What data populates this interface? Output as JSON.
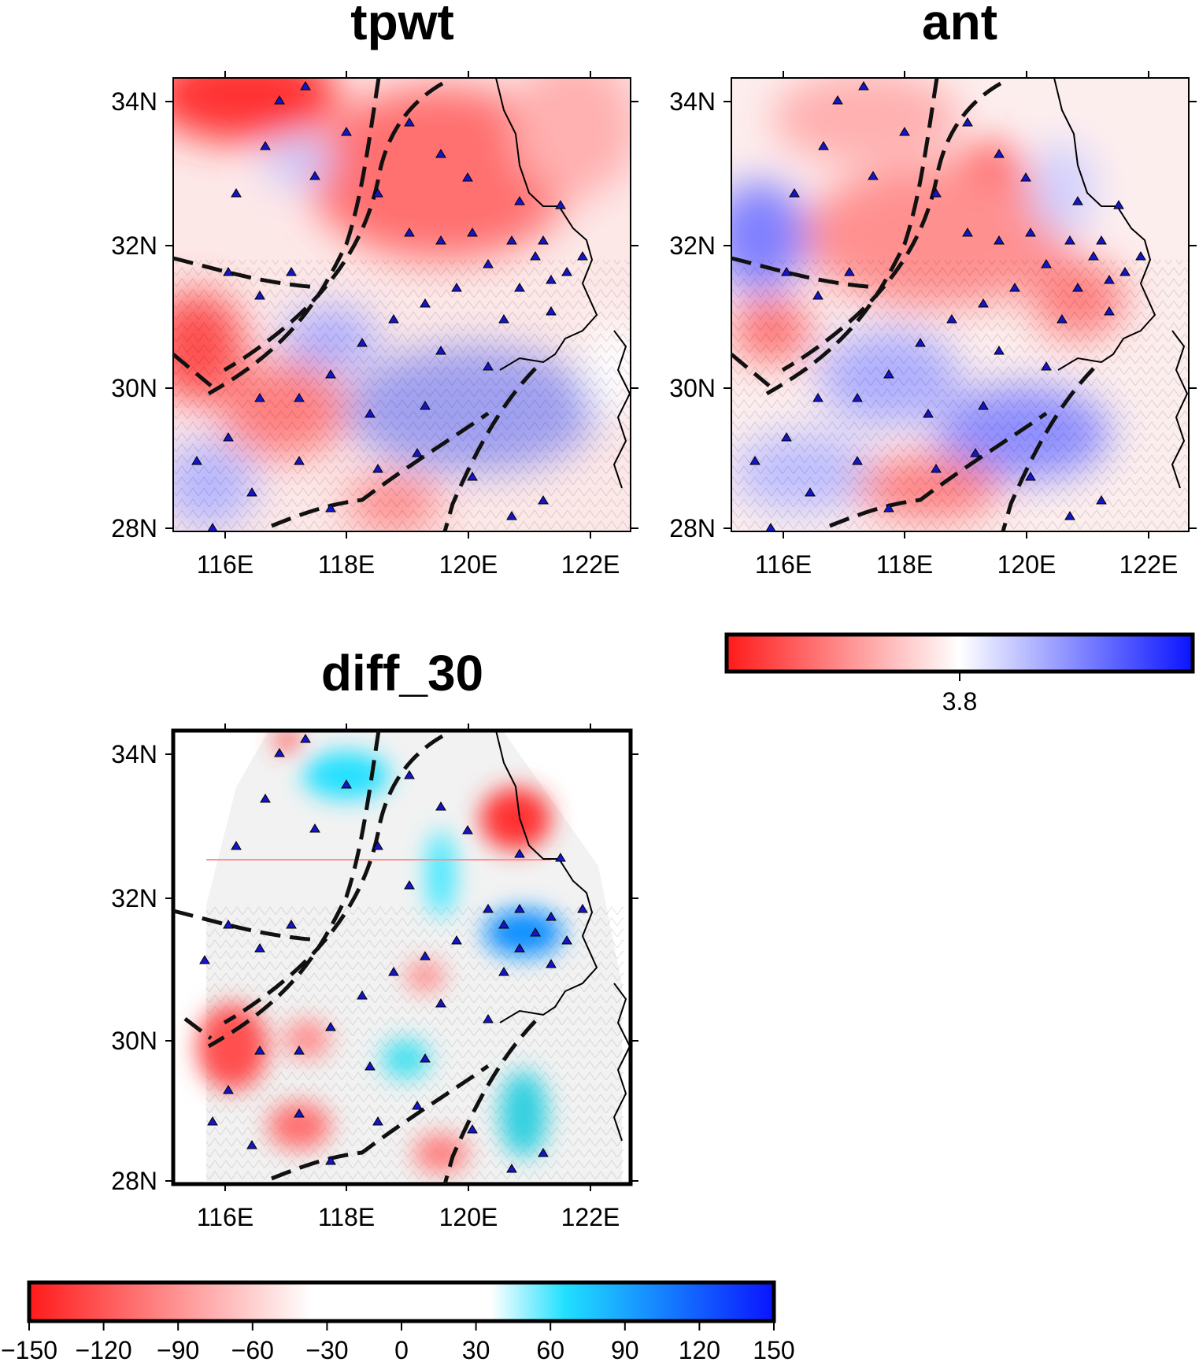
{
  "panels": [
    {
      "title": "tpwt",
      "lon_ticks": [
        "116E",
        "118E",
        "120E",
        "122E"
      ],
      "lat_ticks": [
        "34N",
        "32N",
        "30N",
        "28N"
      ]
    },
    {
      "title": "ant",
      "lon_ticks": [
        "116E",
        "118E",
        "120E",
        "122E"
      ],
      "lat_ticks": [
        "34N",
        "32N",
        "30N",
        "28N"
      ]
    },
    {
      "title": "diff_30",
      "lon_ticks": [
        "116E",
        "118E",
        "120E",
        "122E"
      ],
      "lat_ticks": [
        "34N",
        "32N",
        "30N",
        "28N"
      ]
    }
  ],
  "velocity_colorbar": {
    "label": "3.8",
    "colors": [
      "#ff0000",
      "#ffffff",
      "#0000ff"
    ]
  },
  "diff_colorbar": {
    "labels": [
      "−150",
      "−120",
      "−90",
      "−60",
      "−30",
      "0",
      "30",
      "60",
      "90",
      "120",
      "150"
    ],
    "colors": [
      "#ff0000",
      "#ffffff",
      "#00e5ff",
      "#0000ff"
    ]
  },
  "map_extent": {
    "lon": [
      115,
      122.5
    ],
    "lat": [
      27.9,
      34.3
    ]
  },
  "symbols": {
    "station": "blue-triangle",
    "fault": "dashed-black-line"
  }
}
